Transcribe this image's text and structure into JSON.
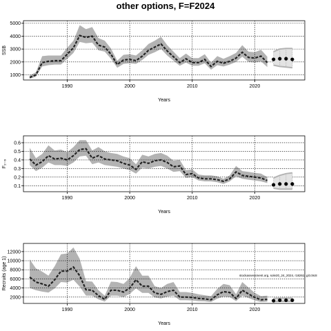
{
  "figure": {
    "title": "other options, F=F2024",
    "footnote": "stockassessment.org, sole20_24_2024, r18261, git:c9c8"
  },
  "chart_data": [
    {
      "type": "line",
      "ylabel": "SSB",
      "xlabel": "Years",
      "xlim": [
        1983,
        2028
      ],
      "ylim": [
        600,
        5200
      ],
      "xticks": [
        1990,
        2000,
        2010,
        2020
      ],
      "yticks": [
        1000,
        2000,
        3000,
        4000,
        5000
      ],
      "ytick_labels": [
        "1000",
        "2000",
        "3000",
        "4000",
        "5000"
      ],
      "grid": true,
      "estimate": {
        "x": [
          1984,
          1985,
          1986,
          1987,
          1988,
          1989,
          1990,
          1991,
          1992,
          1993,
          1994,
          1995,
          1996,
          1997,
          1998,
          1999,
          2000,
          2001,
          2002,
          2003,
          2004,
          2005,
          2006,
          2007,
          2008,
          2009,
          2010,
          2011,
          2012,
          2013,
          2014,
          2015,
          2016,
          2017,
          2018,
          2019,
          2020,
          2021,
          2022
        ],
        "y": [
          800,
          1000,
          1950,
          2050,
          2100,
          2100,
          2600,
          3100,
          4050,
          3900,
          4000,
          3300,
          3150,
          2600,
          1800,
          2150,
          2200,
          2100,
          2450,
          2900,
          3150,
          3400,
          2850,
          2400,
          1950,
          2250,
          1950,
          1950,
          2200,
          1650,
          2050,
          1900,
          2050,
          2300,
          2750,
          2350,
          2300,
          2450,
          1950
        ],
        "lower": [
          700,
          850,
          1650,
          1750,
          1800,
          1800,
          2250,
          2700,
          3550,
          3450,
          3500,
          2900,
          2800,
          2250,
          1550,
          1850,
          1900,
          1850,
          2150,
          2550,
          2750,
          3000,
          2500,
          2100,
          1700,
          1950,
          1700,
          1700,
          1900,
          1400,
          1750,
          1650,
          1800,
          2000,
          2400,
          2000,
          1950,
          2050,
          1600
        ],
        "upper": [
          950,
          1200,
          2450,
          2500,
          2500,
          2500,
          3100,
          3650,
          4850,
          4550,
          4700,
          3850,
          3650,
          3050,
          2100,
          2550,
          2600,
          2500,
          2900,
          3400,
          3650,
          3950,
          3300,
          2800,
          2300,
          2650,
          2300,
          2300,
          2600,
          1950,
          2450,
          2250,
          2450,
          2700,
          3300,
          2800,
          2750,
          2950,
          2400
        ]
      },
      "projection": {
        "x": [
          2023,
          2024,
          2025,
          2026
        ],
        "y": [
          2200,
          2250,
          2250,
          2200
        ],
        "lower": [
          1750,
          1650,
          1600,
          1550
        ],
        "upper": [
          2800,
          3000,
          3050,
          3050
        ]
      }
    },
    {
      "type": "line",
      "ylabel": "F₂₋₆",
      "xlabel": "Years",
      "xlim": [
        1983,
        2028
      ],
      "ylim": [
        0.03,
        0.68
      ],
      "xticks": [
        1990,
        2000,
        2010,
        2020
      ],
      "yticks": [
        0.1,
        0.2,
        0.3,
        0.4,
        0.5,
        0.6
      ],
      "ytick_labels": [
        "0.1",
        "0.2",
        "0.3",
        "0.4",
        "0.5",
        "0.6"
      ],
      "grid": true,
      "estimate": {
        "x": [
          1984,
          1985,
          1986,
          1987,
          1988,
          1989,
          1990,
          1991,
          1992,
          1993,
          1994,
          1995,
          1996,
          1997,
          1998,
          1999,
          2000,
          2001,
          2002,
          2003,
          2004,
          2005,
          2006,
          2007,
          2008,
          2009,
          2010,
          2011,
          2012,
          2013,
          2014,
          2015,
          2016,
          2017,
          2018,
          2019,
          2020,
          2021,
          2022
        ],
        "y": [
          0.41,
          0.34,
          0.38,
          0.45,
          0.41,
          0.42,
          0.4,
          0.45,
          0.52,
          0.53,
          0.42,
          0.45,
          0.41,
          0.4,
          0.39,
          0.36,
          0.34,
          0.29,
          0.38,
          0.36,
          0.39,
          0.4,
          0.37,
          0.32,
          0.33,
          0.23,
          0.24,
          0.19,
          0.18,
          0.18,
          0.17,
          0.15,
          0.18,
          0.26,
          0.22,
          0.21,
          0.2,
          0.19,
          0.16
        ],
        "lower": [
          0.34,
          0.27,
          0.31,
          0.37,
          0.34,
          0.34,
          0.33,
          0.37,
          0.44,
          0.45,
          0.35,
          0.37,
          0.34,
          0.33,
          0.32,
          0.3,
          0.28,
          0.24,
          0.31,
          0.3,
          0.32,
          0.33,
          0.3,
          0.26,
          0.27,
          0.19,
          0.2,
          0.16,
          0.15,
          0.15,
          0.14,
          0.12,
          0.15,
          0.21,
          0.18,
          0.17,
          0.16,
          0.15,
          0.13
        ],
        "upper": [
          0.54,
          0.42,
          0.47,
          0.57,
          0.51,
          0.52,
          0.49,
          0.55,
          0.63,
          0.63,
          0.51,
          0.55,
          0.5,
          0.48,
          0.47,
          0.44,
          0.42,
          0.35,
          0.46,
          0.44,
          0.47,
          0.48,
          0.45,
          0.39,
          0.4,
          0.28,
          0.29,
          0.23,
          0.22,
          0.22,
          0.21,
          0.18,
          0.22,
          0.33,
          0.27,
          0.26,
          0.25,
          0.24,
          0.2
        ]
      },
      "projection": {
        "x": [
          2023,
          2024,
          2025,
          2026
        ],
        "y": [
          0.11,
          0.12,
          0.12,
          0.12
        ],
        "lower": [
          0.07,
          0.06,
          0.06,
          0.06
        ],
        "upper": [
          0.19,
          0.22,
          0.24,
          0.25
        ]
      }
    },
    {
      "type": "line",
      "ylabel": "Recruits (age 1)",
      "xlabel": "Years",
      "xlim": [
        1983,
        2028
      ],
      "ylim": [
        600,
        13800
      ],
      "xticks": [
        1990,
        2000,
        2010,
        2020
      ],
      "yticks": [
        2000,
        4000,
        6000,
        8000,
        10000,
        12000
      ],
      "ytick_labels": [
        "2000",
        "4000",
        "6000",
        "8000",
        "10000",
        "12000"
      ],
      "grid": true,
      "estimate": {
        "x": [
          1984,
          1985,
          1986,
          1987,
          1988,
          1989,
          1990,
          1991,
          1992,
          1993,
          1994,
          1995,
          1996,
          1997,
          1998,
          1999,
          2000,
          2001,
          2002,
          2003,
          2004,
          2005,
          2006,
          2007,
          2008,
          2009,
          2010,
          2011,
          2012,
          2013,
          2014,
          2015,
          2016,
          2017,
          2018,
          2019,
          2020,
          2021,
          2022
        ],
        "y": [
          6400,
          5300,
          4900,
          4400,
          5800,
          7700,
          7700,
          8600,
          6700,
          3600,
          3500,
          2300,
          1500,
          3500,
          3500,
          3100,
          4000,
          5800,
          4400,
          4400,
          2900,
          2600,
          3200,
          3500,
          2000,
          2000,
          1900,
          1700,
          1600,
          1400,
          2500,
          3200,
          3000,
          1700,
          3500,
          2700,
          1900,
          1400,
          1500
        ],
        "lower": [
          4000,
          3500,
          3200,
          3000,
          3900,
          5300,
          5200,
          5800,
          4300,
          2300,
          2300,
          1500,
          1000,
          2300,
          2300,
          2000,
          2700,
          3900,
          2900,
          2900,
          1900,
          1700,
          2100,
          2300,
          1300,
          1300,
          1250,
          1100,
          1050,
          900,
          1650,
          2100,
          2000,
          1100,
          2300,
          1800,
          1250,
          900,
          1000
        ],
        "upper": [
          10300,
          8300,
          7600,
          6700,
          8800,
          11400,
          11600,
          12900,
          10400,
          5500,
          5400,
          3500,
          2300,
          5400,
          5300,
          4900,
          6200,
          8800,
          6700,
          6700,
          4400,
          4000,
          4900,
          5300,
          3100,
          3100,
          2900,
          2600,
          2400,
          2200,
          3800,
          4900,
          4600,
          2600,
          5300,
          4100,
          2900,
          2200,
          2300
        ]
      },
      "projection": {
        "x": [
          2023,
          2024,
          2025,
          2026
        ],
        "y": [
          1200,
          1300,
          1300,
          1300
        ],
        "lower": [
          1000,
          1050,
          1050,
          1050
        ],
        "upper": [
          1700,
          1750,
          1750,
          1750
        ]
      }
    }
  ]
}
